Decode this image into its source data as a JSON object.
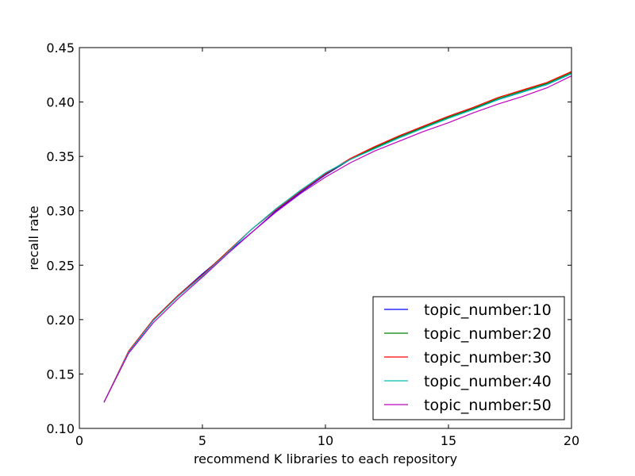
{
  "chart_data": {
    "type": "line",
    "title": "",
    "xlabel": "recommend K libraries to each repository",
    "ylabel": "recall rate",
    "xlim": [
      0,
      20
    ],
    "ylim": [
      0.1,
      0.45
    ],
    "xticks": [
      0,
      5,
      10,
      15,
      20
    ],
    "xtick_labels": [
      "0",
      "5",
      "10",
      "15",
      "20"
    ],
    "yticks": [
      0.1,
      0.15,
      0.2,
      0.25,
      0.3,
      0.35,
      0.4,
      0.45
    ],
    "ytick_labels": [
      "0.10",
      "0.15",
      "0.20",
      "0.25",
      "0.30",
      "0.35",
      "0.40",
      "0.45"
    ],
    "grid": false,
    "legend_position": "bottom-right",
    "x": [
      1,
      2,
      3,
      4,
      5,
      6,
      7,
      8,
      9,
      10,
      11,
      12,
      13,
      14,
      15,
      16,
      17,
      18,
      19,
      20
    ],
    "series": [
      {
        "name": "topic_number:10",
        "color": "#0000ff",
        "values": [
          0.124,
          0.17,
          0.199,
          0.222,
          0.242,
          0.261,
          0.28,
          0.3,
          0.317,
          0.333,
          0.347,
          0.358,
          0.368,
          0.377,
          0.386,
          0.394,
          0.402,
          0.409,
          0.416,
          0.426
        ]
      },
      {
        "name": "topic_number:20",
        "color": "#008000",
        "values": [
          0.124,
          0.17,
          0.2,
          0.222,
          0.241,
          0.262,
          0.283,
          0.302,
          0.319,
          0.334,
          0.347,
          0.358,
          0.368,
          0.377,
          0.386,
          0.394,
          0.403,
          0.41,
          0.417,
          0.427
        ]
      },
      {
        "name": "topic_number:30",
        "color": "#ff0000",
        "values": [
          0.124,
          0.171,
          0.2,
          0.222,
          0.241,
          0.262,
          0.283,
          0.301,
          0.318,
          0.334,
          0.348,
          0.359,
          0.369,
          0.378,
          0.387,
          0.395,
          0.404,
          0.411,
          0.418,
          0.428
        ]
      },
      {
        "name": "topic_number:40",
        "color": "#00bfbf",
        "values": [
          0.124,
          0.17,
          0.199,
          0.221,
          0.24,
          0.261,
          0.283,
          0.302,
          0.319,
          0.335,
          0.347,
          0.357,
          0.367,
          0.376,
          0.385,
          0.393,
          0.402,
          0.409,
          0.416,
          0.426
        ]
      },
      {
        "name": "topic_number:50",
        "color": "#bf00bf",
        "values": [
          0.124,
          0.169,
          0.197,
          0.219,
          0.239,
          0.26,
          0.28,
          0.299,
          0.316,
          0.331,
          0.344,
          0.355,
          0.364,
          0.373,
          0.381,
          0.39,
          0.398,
          0.405,
          0.413,
          0.424
        ]
      }
    ]
  }
}
